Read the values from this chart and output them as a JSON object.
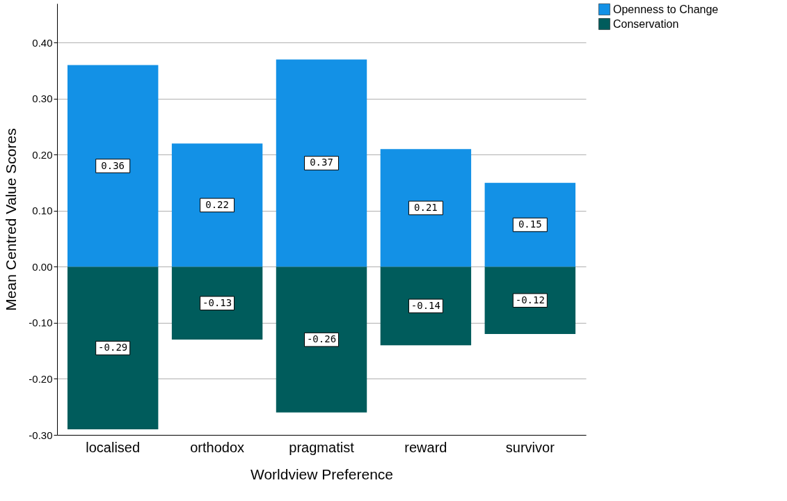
{
  "chart_data": {
    "type": "bar",
    "stacked": true,
    "xlabel": "Worldview Preference",
    "ylabel": "Mean Centred Value Scores",
    "categories": [
      "localised",
      "orthodox",
      "pragmatist",
      "reward",
      "survivor"
    ],
    "series": [
      {
        "name": "Openness to Change",
        "color": "#1391e6",
        "values": [
          0.36,
          0.22,
          0.37,
          0.21,
          0.15
        ]
      },
      {
        "name": "Conservation",
        "color": "#005c5c",
        "values": [
          -0.29,
          -0.13,
          -0.26,
          -0.14,
          -0.12
        ]
      }
    ],
    "ylim": [
      -0.3,
      0.47
    ],
    "yticks": [
      {
        "value": -0.3,
        "label": "-0.30"
      },
      {
        "value": -0.2,
        "label": "-0.20"
      },
      {
        "value": -0.1,
        "label": "-0.10"
      },
      {
        "value": 0,
        "label": "0.00"
      },
      {
        "value": 0.1,
        "label": "0.10"
      },
      {
        "value": 0.2,
        "label": "0.20"
      },
      {
        "value": 0.3,
        "label": "0.30"
      },
      {
        "value": 0.4,
        "label": "0.40"
      }
    ],
    "grid": "y",
    "legend": "top right",
    "data_labels": true
  }
}
